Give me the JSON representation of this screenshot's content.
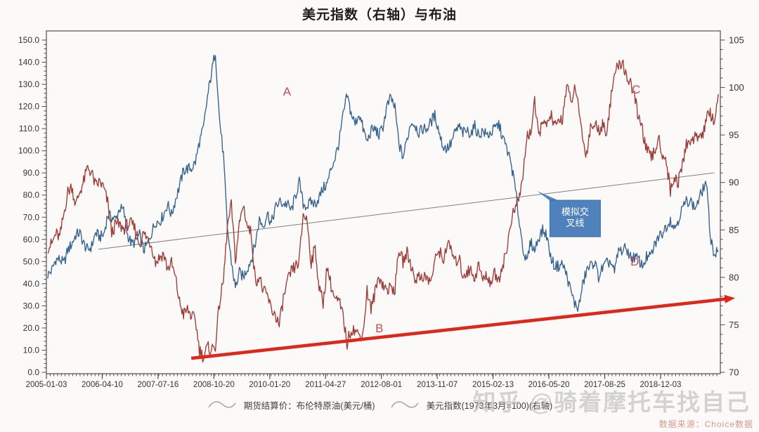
{
  "title": "美元指数（右轴）与布油",
  "watermark": "知乎 @骑着摩托车找自己",
  "source": "数据来源：Choice数据",
  "legend": {
    "items": [
      {
        "label": "期货结算价：布伦特原油(美元/桶)",
        "marker": "squiggle-line"
      },
      {
        "label": "美元指数(1973年3月=100)(右轴)",
        "marker": "squiggle-line"
      }
    ],
    "marker_color": "#a8a8a8"
  },
  "chart_data": {
    "type": "line",
    "title": "美元指数（右轴）与布油",
    "xlabel": "",
    "ylabel": "",
    "grid": false,
    "legend_position": "bottom",
    "x_tick_labels": [
      "2005-01-03",
      "2006-04-10",
      "2007-07-16",
      "2008-10-20",
      "2010-01-20",
      "2011-04-27",
      "2012-08-01",
      "2013-11-07",
      "2015-02-13",
      "2016-05-20",
      "2017-08-25",
      "2018-12-03"
    ],
    "left_axis": {
      "min": 0,
      "max": 150,
      "major_step": 10,
      "minor_step": 2,
      "decimals": 1
    },
    "right_axis": {
      "min": 70,
      "max": 105,
      "major_step": 5,
      "minor_step": 1,
      "decimals": 0
    },
    "series": [
      {
        "name": "期货结算价：布伦特原油(美元/桶)",
        "axis": "left",
        "color": "#35618E",
        "monthly_start": "2005-01",
        "values": [
          44,
          46,
          51,
          51,
          49,
          55,
          58,
          62,
          63,
          58,
          55,
          57,
          63,
          61,
          62,
          71,
          70,
          69,
          74,
          73,
          62,
          58,
          59,
          62,
          55,
          58,
          63,
          68,
          68,
          71,
          76,
          71,
          78,
          84,
          91,
          92,
          92,
          95,
          104,
          110,
          124,
          135,
          145,
          115,
          98,
          65,
          50,
          38,
          45,
          43,
          47,
          51,
          58,
          69,
          66,
          72,
          67,
          74,
          77,
          76,
          76,
          73,
          79,
          86,
          76,
          75,
          77,
          76,
          79,
          83,
          85,
          92,
          97,
          104,
          116,
          125,
          117,
          112,
          117,
          110,
          104,
          109,
          110,
          107,
          111,
          120,
          124,
          119,
          103,
          97,
          105,
          113,
          112,
          108,
          110,
          110,
          113,
          116,
          109,
          102,
          101,
          103,
          108,
          111,
          108,
          109,
          108,
          111,
          107,
          109,
          107,
          108,
          110,
          112,
          106,
          101,
          95,
          85,
          70,
          57,
          49,
          59,
          55,
          61,
          64,
          62,
          52,
          48,
          48,
          49,
          44,
          37,
          31,
          29,
          39,
          46,
          48,
          50,
          43,
          47,
          49,
          50,
          45,
          55,
          55,
          56,
          52,
          52,
          51,
          48,
          52,
          52,
          57,
          61,
          63,
          66,
          69,
          65,
          69,
          74,
          77,
          78,
          74,
          77,
          82,
          86,
          62,
          53,
          55
        ]
      },
      {
        "name": "美元指数(1973年3月=100)(右轴)",
        "axis": "right",
        "color": "#9C3A36",
        "monthly_start": "2005-01",
        "values": [
          83.2,
          83.5,
          84.6,
          84.2,
          86.6,
          89.0,
          89.6,
          87.6,
          89.0,
          90.1,
          91.6,
          91.0,
          89.6,
          90.1,
          89.4,
          87.9,
          84.6,
          85.6,
          85.5,
          85.1,
          85.6,
          85.6,
          85.0,
          83.5,
          84.6,
          84.1,
          83.4,
          81.6,
          82.1,
          82.5,
          80.9,
          81.5,
          79.9,
          77.4,
          76.1,
          76.6,
          75.9,
          75.5,
          72.4,
          71.6,
          72.6,
          72.4,
          72.8,
          77.2,
          79.6,
          85.3,
          87.6,
          81.8,
          85.6,
          87.7,
          85.4,
          84.6,
          79.6,
          80.1,
          78.5,
          78.1,
          76.6,
          76.1,
          74.9,
          77.7,
          79.4,
          80.6,
          81.1,
          81.7,
          86.7,
          86.0,
          81.6,
          83.1,
          78.9,
          77.3,
          81.2,
          79.1,
          77.6,
          77.4,
          75.9,
          73.0,
          74.6,
          74.4,
          73.9,
          74.1,
          78.6,
          76.6,
          78.4,
          80.2,
          79.2,
          78.7,
          78.9,
          78.8,
          83.0,
          81.6,
          82.6,
          81.3,
          79.9,
          80.0,
          80.2,
          79.8,
          79.6,
          81.6,
          83.0,
          81.7,
          83.4,
          83.1,
          81.5,
          82.1,
          80.2,
          80.6,
          80.7,
          80.0,
          81.3,
          79.7,
          80.2,
          79.5,
          80.4,
          79.8,
          81.4,
          82.7,
          85.9,
          87.1,
          88.3,
          90.3,
          94.8,
          95.3,
          98.4,
          94.6,
          96.9,
          95.6,
          97.3,
          95.8,
          96.3,
          96.9,
          100.2,
          98.6,
          99.6,
          98.2,
          94.6,
          93.0,
          95.9,
          96.1,
          95.6,
          96.0,
          95.5,
          98.4,
          101.5,
          102.2,
          102.8,
          101.1,
          100.6,
          99.0,
          96.9,
          95.6,
          93.4,
          92.7,
          93.1,
          94.6,
          93.1,
          92.2,
          89.1,
          90.6,
          90.0,
          91.8,
          94.0,
          94.5,
          94.5,
          95.1,
          95.0,
          96.6,
          97.3,
          96.4,
          99.3
        ]
      }
    ],
    "noise_amplitude": {
      "left": 2.6,
      "right": 0.7
    },
    "annotations": {
      "letters": [
        {
          "text": "A",
          "fx": 0.357,
          "fy": 0.176,
          "color": "#C0504D"
        },
        {
          "text": "B",
          "fx": 0.494,
          "fy": 0.867,
          "color": "#C0504D"
        },
        {
          "text": "C",
          "fx": 0.875,
          "fy": 0.17,
          "color": "#C0504D"
        },
        {
          "text": "D",
          "fx": 0.873,
          "fy": 0.672,
          "color": "#C0504D"
        }
      ],
      "trend_line": {
        "fx1": 0.077,
        "fy1": 0.637,
        "fx2": 0.991,
        "fy2": 0.414,
        "color": "#7f7f7f"
      },
      "arrow": {
        "fx1": 0.215,
        "fy1": 0.955,
        "fx2": 1.022,
        "fy2": 0.779,
        "color": "#E0261A"
      },
      "callout": {
        "text": "模拟交叉线",
        "lines": [
          "模拟交",
          "叉线"
        ],
        "box_fx": 0.747,
        "box_fy": 0.494,
        "width": 72,
        "height": 52,
        "tip_fx": 0.728,
        "tip_fy": 0.467,
        "fill": "#4F81BD",
        "text_color": "#ffffff"
      }
    }
  }
}
